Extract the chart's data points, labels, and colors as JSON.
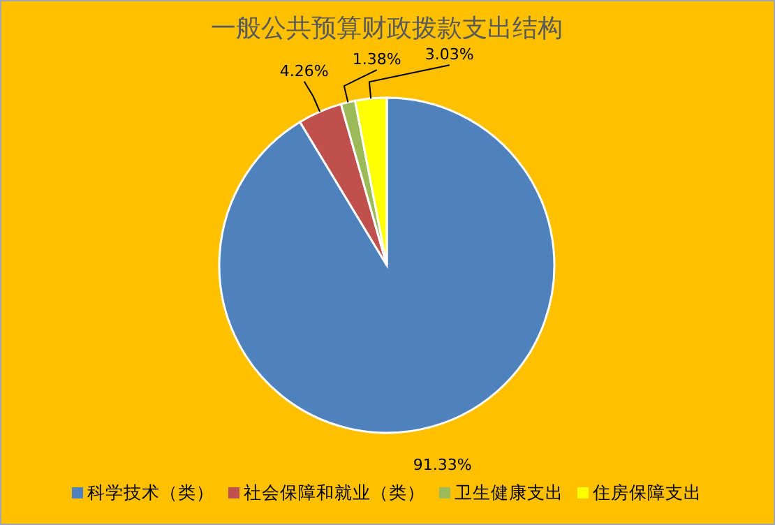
{
  "chart_data": {
    "type": "pie",
    "title": "一般公共预算财政拨款支出结构",
    "categories": [
      "科学技术（类）",
      "社会保障和就业（类）",
      "卫生健康支出",
      "住房保障支出"
    ],
    "values": [
      91.33,
      4.26,
      1.38,
      3.03
    ],
    "colors": [
      "#4f81bd",
      "#c0504d",
      "#9bbb59",
      "#ffff00"
    ],
    "value_labels": [
      "91.33%",
      "4.26%",
      "1.38%",
      "3.03%"
    ],
    "legend": "bottom"
  }
}
